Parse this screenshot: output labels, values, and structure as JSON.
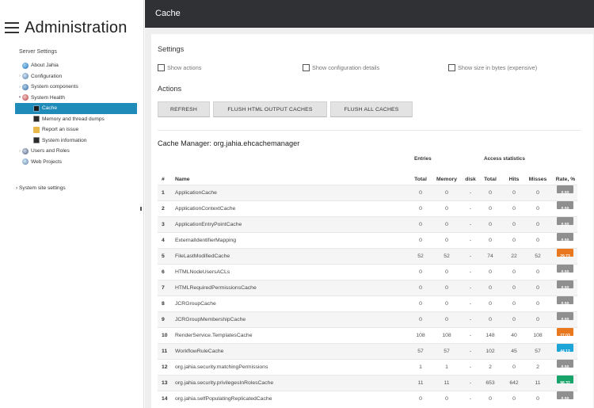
{
  "app": {
    "title": "Administration",
    "page_title": "Cache"
  },
  "sidebar": {
    "section_label": "Server Settings",
    "items": [
      {
        "label": "About Jahia",
        "icon": "globe-icon",
        "level": 0,
        "toggle": ""
      },
      {
        "label": "Configuration",
        "icon": "gear-icon",
        "level": 0,
        "toggle": "›"
      },
      {
        "label": "System components",
        "icon": "components-icon",
        "level": 0,
        "toggle": "›"
      },
      {
        "label": "System Health",
        "icon": "system-health-icon",
        "level": 0,
        "toggle": "▾"
      },
      {
        "label": "Cache",
        "icon": "cache-icon",
        "level": 1,
        "toggle": "",
        "active": true
      },
      {
        "label": "Memory and thread dumps",
        "icon": "terminal-icon",
        "level": 1,
        "toggle": ""
      },
      {
        "label": "Report an issue",
        "icon": "warning-icon",
        "level": 1,
        "toggle": ""
      },
      {
        "label": "System information",
        "icon": "terminal-icon",
        "level": 1,
        "toggle": ""
      },
      {
        "label": "Users and Roles",
        "icon": "users-icon",
        "level": 0,
        "toggle": "›"
      },
      {
        "label": "Web Projects",
        "icon": "web-projects-icon",
        "level": 0,
        "toggle": ""
      }
    ],
    "system_site_settings": "System site settings"
  },
  "settings": {
    "title": "Settings",
    "show_actions": "Show actions",
    "show_configuration_details": "Show configuration details",
    "show_size_in_bytes": "Show size in bytes (expensive)"
  },
  "actions": {
    "title": "Actions",
    "refresh": "REFRESH",
    "flush_html": "FLUSH HTML OUTPUT CACHES",
    "flush_all": "FLUSH ALL CACHES"
  },
  "cache_manager": {
    "title": "Cache Manager: org.jahia.ehcachemanager",
    "group_headers": {
      "entries": "Entries",
      "access": "Access statistics"
    },
    "columns": [
      "#",
      "Name",
      "Total",
      "Memory",
      "disk",
      "Total",
      "Hits",
      "Misses",
      "Rate, %"
    ],
    "rows": [
      {
        "n": "1",
        "name": "ApplicationCache",
        "total": "0",
        "memory": "0",
        "disk": "-",
        "access_total": "0",
        "hits": "0",
        "misses": "0",
        "rate": "0.00",
        "rate_color": "#8f8f8f"
      },
      {
        "n": "2",
        "name": "ApplicationContextCache",
        "total": "0",
        "memory": "0",
        "disk": "-",
        "access_total": "0",
        "hits": "0",
        "misses": "0",
        "rate": "0.00",
        "rate_color": "#8f8f8f"
      },
      {
        "n": "3",
        "name": "ApplicationEntryPointCache",
        "total": "0",
        "memory": "0",
        "disk": "-",
        "access_total": "0",
        "hits": "0",
        "misses": "0",
        "rate": "0.00",
        "rate_color": "#8f8f8f"
      },
      {
        "n": "4",
        "name": "ExternalIdentifierMapping",
        "total": "0",
        "memory": "0",
        "disk": "-",
        "access_total": "0",
        "hits": "0",
        "misses": "0",
        "rate": "0.00",
        "rate_color": "#8f8f8f"
      },
      {
        "n": "5",
        "name": "FileLastModifiedCache",
        "total": "52",
        "memory": "52",
        "disk": "-",
        "access_total": "74",
        "hits": "22",
        "misses": "52",
        "rate": "29.73",
        "rate_color": "#e8771e"
      },
      {
        "n": "6",
        "name": "HTMLNodeUsersACLs",
        "total": "0",
        "memory": "0",
        "disk": "-",
        "access_total": "0",
        "hits": "0",
        "misses": "0",
        "rate": "0.00",
        "rate_color": "#8f8f8f"
      },
      {
        "n": "7",
        "name": "HTMLRequiredPermissionsCache",
        "total": "0",
        "memory": "0",
        "disk": "-",
        "access_total": "0",
        "hits": "0",
        "misses": "0",
        "rate": "0.00",
        "rate_color": "#8f8f8f"
      },
      {
        "n": "8",
        "name": "JCRGroupCache",
        "total": "0",
        "memory": "0",
        "disk": "-",
        "access_total": "0",
        "hits": "0",
        "misses": "0",
        "rate": "0.00",
        "rate_color": "#8f8f8f"
      },
      {
        "n": "9",
        "name": "JCRGroupMembershipCache",
        "total": "0",
        "memory": "0",
        "disk": "-",
        "access_total": "0",
        "hits": "0",
        "misses": "0",
        "rate": "0.00",
        "rate_color": "#8f8f8f"
      },
      {
        "n": "10",
        "name": "RenderService.TemplatesCache",
        "total": "108",
        "memory": "108",
        "disk": "-",
        "access_total": "148",
        "hits": "40",
        "misses": "108",
        "rate": "27.03",
        "rate_color": "#e8771e"
      },
      {
        "n": "11",
        "name": "WorkflowRuleCache",
        "total": "57",
        "memory": "57",
        "disk": "-",
        "access_total": "102",
        "hits": "45",
        "misses": "57",
        "rate": "44.12",
        "rate_color": "#1ea5d8"
      },
      {
        "n": "12",
        "name": "org.jahia.security.matchingPermissions",
        "total": "1",
        "memory": "1",
        "disk": "-",
        "access_total": "2",
        "hits": "0",
        "misses": "2",
        "rate": "0.00",
        "rate_color": "#8f8f8f"
      },
      {
        "n": "13",
        "name": "org.jahia.security.privilegesInRolesCache",
        "total": "11",
        "memory": "11",
        "disk": "-",
        "access_total": "653",
        "hits": "642",
        "misses": "11",
        "rate": "98.32",
        "rate_color": "#17a36a"
      },
      {
        "n": "14",
        "name": "org.jahia.selfPopulatingReplicatedCache",
        "total": "0",
        "memory": "0",
        "disk": "-",
        "access_total": "0",
        "hits": "0",
        "misses": "0",
        "rate": "0.00",
        "rate_color": "#8f8f8f"
      }
    ]
  }
}
